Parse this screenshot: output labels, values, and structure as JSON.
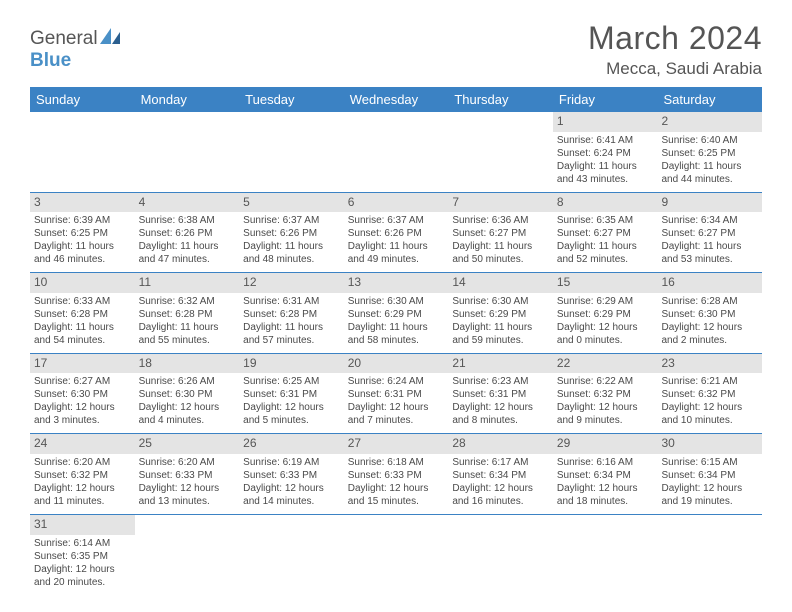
{
  "logo": {
    "general": "General",
    "blue": "Blue"
  },
  "title": "March 2024",
  "location": "Mecca, Saudi Arabia",
  "colors": {
    "header_bg": "#3b82c4",
    "header_text": "#ffffff",
    "daynum_bg": "#e4e4e4",
    "text": "#4a4a4a",
    "title": "#555555",
    "row_border": "#3b82c4"
  },
  "daynames": [
    "Sunday",
    "Monday",
    "Tuesday",
    "Wednesday",
    "Thursday",
    "Friday",
    "Saturday"
  ],
  "weeks": [
    [
      null,
      null,
      null,
      null,
      null,
      {
        "num": "1",
        "sunrise": "6:41 AM",
        "sunset": "6:24 PM",
        "daylight": "11 hours and 43 minutes."
      },
      {
        "num": "2",
        "sunrise": "6:40 AM",
        "sunset": "6:25 PM",
        "daylight": "11 hours and 44 minutes."
      }
    ],
    [
      {
        "num": "3",
        "sunrise": "6:39 AM",
        "sunset": "6:25 PM",
        "daylight": "11 hours and 46 minutes."
      },
      {
        "num": "4",
        "sunrise": "6:38 AM",
        "sunset": "6:26 PM",
        "daylight": "11 hours and 47 minutes."
      },
      {
        "num": "5",
        "sunrise": "6:37 AM",
        "sunset": "6:26 PM",
        "daylight": "11 hours and 48 minutes."
      },
      {
        "num": "6",
        "sunrise": "6:37 AM",
        "sunset": "6:26 PM",
        "daylight": "11 hours and 49 minutes."
      },
      {
        "num": "7",
        "sunrise": "6:36 AM",
        "sunset": "6:27 PM",
        "daylight": "11 hours and 50 minutes."
      },
      {
        "num": "8",
        "sunrise": "6:35 AM",
        "sunset": "6:27 PM",
        "daylight": "11 hours and 52 minutes."
      },
      {
        "num": "9",
        "sunrise": "6:34 AM",
        "sunset": "6:27 PM",
        "daylight": "11 hours and 53 minutes."
      }
    ],
    [
      {
        "num": "10",
        "sunrise": "6:33 AM",
        "sunset": "6:28 PM",
        "daylight": "11 hours and 54 minutes."
      },
      {
        "num": "11",
        "sunrise": "6:32 AM",
        "sunset": "6:28 PM",
        "daylight": "11 hours and 55 minutes."
      },
      {
        "num": "12",
        "sunrise": "6:31 AM",
        "sunset": "6:28 PM",
        "daylight": "11 hours and 57 minutes."
      },
      {
        "num": "13",
        "sunrise": "6:30 AM",
        "sunset": "6:29 PM",
        "daylight": "11 hours and 58 minutes."
      },
      {
        "num": "14",
        "sunrise": "6:30 AM",
        "sunset": "6:29 PM",
        "daylight": "11 hours and 59 minutes."
      },
      {
        "num": "15",
        "sunrise": "6:29 AM",
        "sunset": "6:29 PM",
        "daylight": "12 hours and 0 minutes."
      },
      {
        "num": "16",
        "sunrise": "6:28 AM",
        "sunset": "6:30 PM",
        "daylight": "12 hours and 2 minutes."
      }
    ],
    [
      {
        "num": "17",
        "sunrise": "6:27 AM",
        "sunset": "6:30 PM",
        "daylight": "12 hours and 3 minutes."
      },
      {
        "num": "18",
        "sunrise": "6:26 AM",
        "sunset": "6:30 PM",
        "daylight": "12 hours and 4 minutes."
      },
      {
        "num": "19",
        "sunrise": "6:25 AM",
        "sunset": "6:31 PM",
        "daylight": "12 hours and 5 minutes."
      },
      {
        "num": "20",
        "sunrise": "6:24 AM",
        "sunset": "6:31 PM",
        "daylight": "12 hours and 7 minutes."
      },
      {
        "num": "21",
        "sunrise": "6:23 AM",
        "sunset": "6:31 PM",
        "daylight": "12 hours and 8 minutes."
      },
      {
        "num": "22",
        "sunrise": "6:22 AM",
        "sunset": "6:32 PM",
        "daylight": "12 hours and 9 minutes."
      },
      {
        "num": "23",
        "sunrise": "6:21 AM",
        "sunset": "6:32 PM",
        "daylight": "12 hours and 10 minutes."
      }
    ],
    [
      {
        "num": "24",
        "sunrise": "6:20 AM",
        "sunset": "6:32 PM",
        "daylight": "12 hours and 11 minutes."
      },
      {
        "num": "25",
        "sunrise": "6:20 AM",
        "sunset": "6:33 PM",
        "daylight": "12 hours and 13 minutes."
      },
      {
        "num": "26",
        "sunrise": "6:19 AM",
        "sunset": "6:33 PM",
        "daylight": "12 hours and 14 minutes."
      },
      {
        "num": "27",
        "sunrise": "6:18 AM",
        "sunset": "6:33 PM",
        "daylight": "12 hours and 15 minutes."
      },
      {
        "num": "28",
        "sunrise": "6:17 AM",
        "sunset": "6:34 PM",
        "daylight": "12 hours and 16 minutes."
      },
      {
        "num": "29",
        "sunrise": "6:16 AM",
        "sunset": "6:34 PM",
        "daylight": "12 hours and 18 minutes."
      },
      {
        "num": "30",
        "sunrise": "6:15 AM",
        "sunset": "6:34 PM",
        "daylight": "12 hours and 19 minutes."
      }
    ],
    [
      {
        "num": "31",
        "sunrise": "6:14 AM",
        "sunset": "6:35 PM",
        "daylight": "12 hours and 20 minutes."
      },
      null,
      null,
      null,
      null,
      null,
      null
    ]
  ],
  "labels": {
    "sunrise": "Sunrise:",
    "sunset": "Sunset:",
    "daylight": "Daylight:"
  }
}
